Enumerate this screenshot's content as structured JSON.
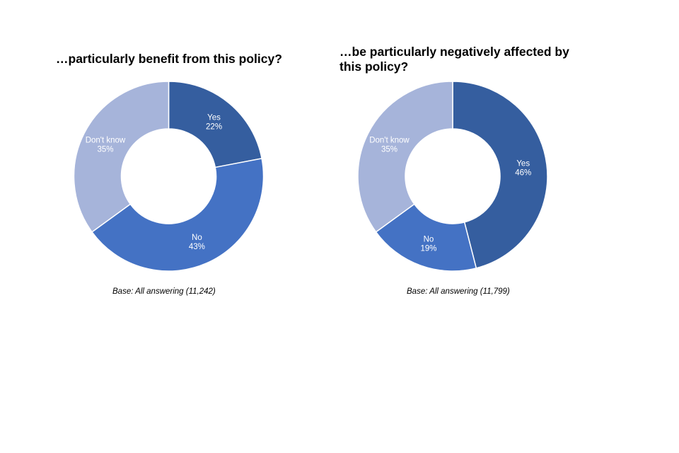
{
  "chart_data": [
    {
      "type": "pie",
      "variant": "donut",
      "title": "…particularly benefit from this policy?",
      "base_note": "Base: All answering (11,242)",
      "categories": [
        "Yes",
        "No",
        "Don't know"
      ],
      "values": [
        22,
        43,
        35
      ],
      "value_labels": [
        "22%",
        "43%",
        "35%"
      ],
      "colors": [
        "#355E9F",
        "#4472C4",
        "#A6B4DA"
      ],
      "start_angle": "12 o'clock",
      "direction": "clockwise",
      "legend": "none (labels on slices)"
    },
    {
      "type": "pie",
      "variant": "donut",
      "title": "…be particularly negatively affected by this policy?",
      "base_note": "Base: All answering (11,799)",
      "categories": [
        "Yes",
        "No",
        "Don't know"
      ],
      "values": [
        46,
        19,
        35
      ],
      "value_labels": [
        "46%",
        "19%",
        "35%"
      ],
      "colors": [
        "#355E9F",
        "#4472C4",
        "#A6B4DA"
      ],
      "start_angle": "12 o'clock",
      "direction": "clockwise",
      "legend": "none (labels on slices)"
    }
  ]
}
